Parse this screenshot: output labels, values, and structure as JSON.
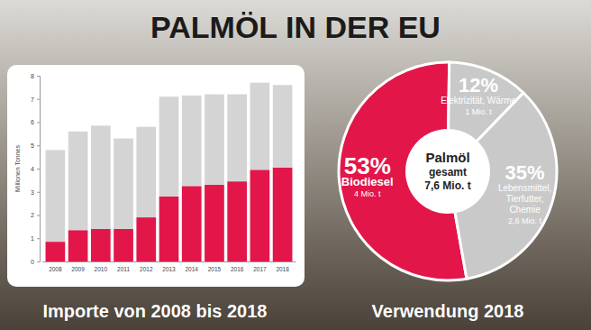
{
  "title": "PALMÖL IN DER EU",
  "chart_data": [
    {
      "type": "bar",
      "title": "Importe von 2008 bis 2018",
      "y_label": "Millionen Tonnes",
      "stacked": true,
      "grid": false,
      "data_labels": false,
      "categories": [
        "2008",
        "2009",
        "2010",
        "2011",
        "2012",
        "2013",
        "2014",
        "2015",
        "2016",
        "2017",
        "2018"
      ],
      "series": [
        {
          "color": "#e3164a",
          "values": [
            0.85,
            1.35,
            1.4,
            1.4,
            1.9,
            2.8,
            3.25,
            3.3,
            3.45,
            3.95,
            4.05
          ]
        },
        {
          "color": "#d4d4d4",
          "values": [
            3.95,
            4.25,
            4.45,
            3.9,
            3.9,
            4.3,
            3.9,
            3.9,
            3.75,
            3.75,
            3.55
          ]
        }
      ],
      "ylim": [
        0,
        8
      ],
      "yticks": [
        0,
        1,
        2,
        3,
        4,
        5,
        6,
        7,
        8
      ]
    },
    {
      "type": "pie",
      "title": "Verwendung 2018",
      "labels": [
        [
          "Biodiesel"
        ],
        [
          "Elektrizität, Wärme"
        ],
        [
          "Lebensmittel,",
          "Tierfutter,",
          "Chemie"
        ]
      ],
      "values": [
        53,
        12,
        35
      ],
      "value_labels": [
        "53%",
        "12%",
        "35%"
      ],
      "amount_labels": [
        "4 Mio. t",
        "1 Mio. t",
        "2,6 Mio. t"
      ],
      "colors": [
        "#e3164a",
        "#c9c9c9",
        "#c9c9c9"
      ],
      "data_labels": true,
      "center_labels": [
        "Palmöl",
        "gesamt",
        "7,6 Mio. t"
      ]
    }
  ]
}
